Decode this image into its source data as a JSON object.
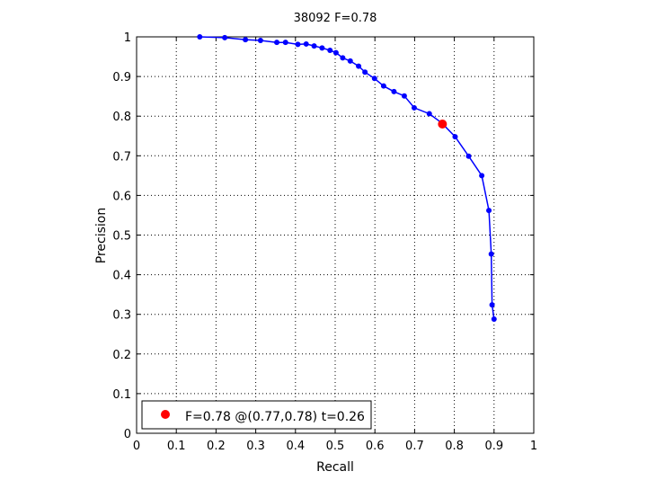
{
  "chart_data": {
    "type": "line",
    "title": "38092 F=0.78",
    "xlabel": "Recall",
    "ylabel": "Precision",
    "xlim": [
      0,
      1
    ],
    "ylim": [
      0,
      1
    ],
    "grid": true,
    "x_ticks": [
      "0",
      "0.1",
      "0.2",
      "0.3",
      "0.4",
      "0.5",
      "0.6",
      "0.7",
      "0.8",
      "0.9",
      "1"
    ],
    "y_ticks": [
      "0",
      "0.1",
      "0.2",
      "0.3",
      "0.4",
      "0.5",
      "0.6",
      "0.7",
      "0.8",
      "0.9",
      "1"
    ],
    "colors": {
      "series": "#0000ff",
      "best_point": "#ff0000",
      "axes": "#000000",
      "grid": "#000000"
    },
    "series": [
      {
        "values": [
          [
            0.159,
            1.0
          ],
          [
            0.222,
            0.998
          ],
          [
            0.274,
            0.993
          ],
          [
            0.312,
            0.991
          ],
          [
            0.353,
            0.986
          ],
          [
            0.375,
            0.986
          ],
          [
            0.406,
            0.981
          ],
          [
            0.427,
            0.982
          ],
          [
            0.447,
            0.977
          ],
          [
            0.467,
            0.972
          ],
          [
            0.487,
            0.966
          ],
          [
            0.502,
            0.96
          ],
          [
            0.519,
            0.947
          ],
          [
            0.538,
            0.939
          ],
          [
            0.559,
            0.926
          ],
          [
            0.575,
            0.911
          ],
          [
            0.599,
            0.895
          ],
          [
            0.622,
            0.876
          ],
          [
            0.648,
            0.862
          ],
          [
            0.674,
            0.851
          ],
          [
            0.699,
            0.821
          ],
          [
            0.737,
            0.806
          ],
          [
            0.768,
            0.783
          ],
          [
            0.802,
            0.748
          ],
          [
            0.836,
            0.699
          ],
          [
            0.869,
            0.65
          ],
          [
            0.887,
            0.562
          ],
          [
            0.893,
            0.452
          ],
          [
            0.895,
            0.324
          ],
          [
            0.9,
            0.288
          ]
        ]
      }
    ],
    "best_point": {
      "x": 0.77,
      "y": 0.78,
      "f": 0.78,
      "t": 0.26
    },
    "legend": {
      "position": "bottom-left",
      "entries": [
        {
          "label": "F=0.78 @(0.77,0.78) t=0.26",
          "color": "#ff0000"
        }
      ]
    }
  }
}
